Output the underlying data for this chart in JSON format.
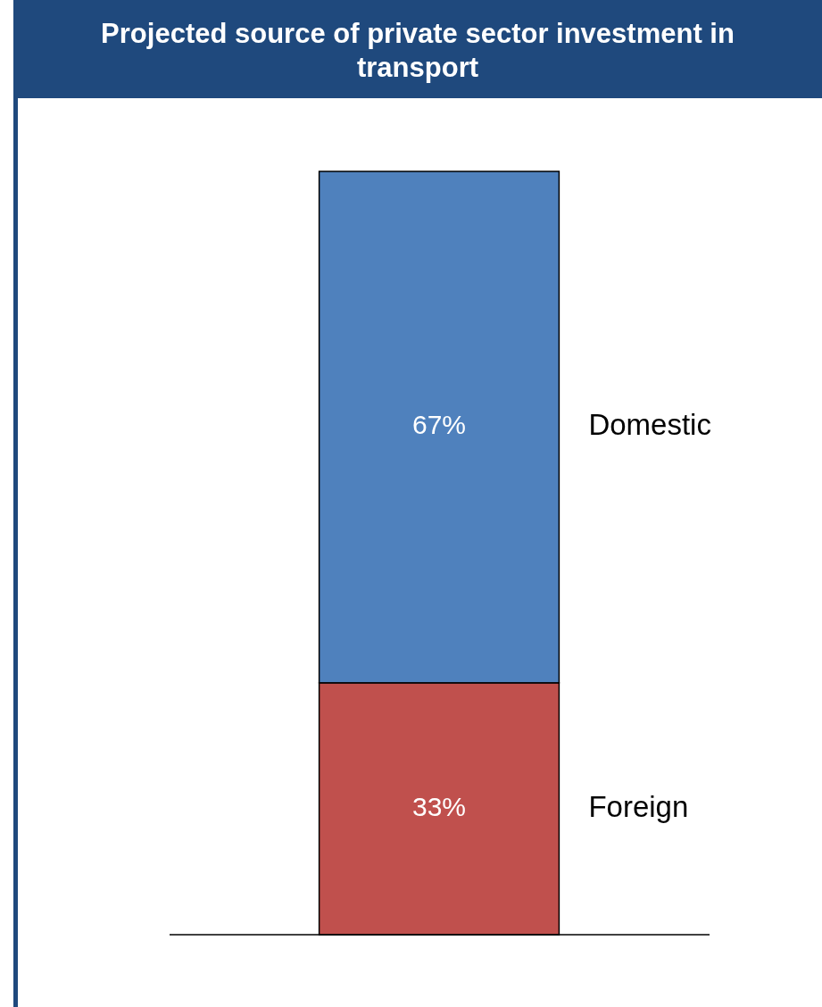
{
  "chart_data": {
    "type": "bar",
    "title": "Projected source of private sector investment in transport",
    "categories": [
      null
    ],
    "stacked": true,
    "series": [
      {
        "name": "Foreign",
        "color": "#c0504d",
        "values": [
          33
        ],
        "value_labels": [
          "33%"
        ]
      },
      {
        "name": "Domestic",
        "color": "#4f81bd",
        "values": [
          67
        ],
        "value_labels": [
          "67%"
        ]
      }
    ]
  }
}
